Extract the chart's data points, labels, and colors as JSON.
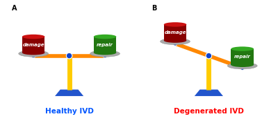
{
  "bg_color": "#ffffff",
  "panel_A_label": "A",
  "panel_B_label": "B",
  "title_A": "Healthy IVD",
  "title_B": "Degenerated IVD",
  "title_A_color": "#0055ff",
  "title_B_color": "#ff0000",
  "damage_color": "#cc1111",
  "damage_dark": "#880000",
  "repair_color": "#33aa22",
  "repair_dark": "#227711",
  "plate_color": "#aaaaaa",
  "plate_edge": "#888888",
  "beam_color": "#ff8800",
  "pivot_color": "#1144cc",
  "pole_color": "#ffcc00",
  "base_color": "#2255cc",
  "label_color": "#ffffff",
  "damage_text": "damage",
  "repair_text": "repair",
  "panel_label_color": "#000000",
  "tilt_A": 0,
  "tilt_B": 20
}
